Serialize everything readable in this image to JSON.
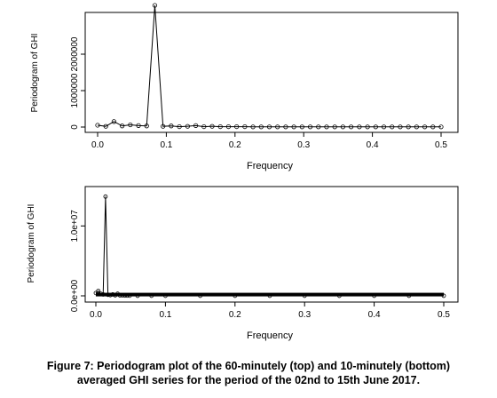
{
  "caption": {
    "line1": "Figure 7: Periodogram plot of the 60-minutely (top) and 10-minutely (bottom)",
    "line2": "averaged GHI series for the period of the 02nd to 15th June 2017."
  },
  "chart_data": [
    {
      "type": "line",
      "xlabel": "Frequency",
      "ylabel": "Periodogram of GHI",
      "xlim": [
        0,
        0.5
      ],
      "ylim": [
        0,
        3000000
      ],
      "xticks": [
        "0.0",
        "0.1",
        "0.2",
        "0.3",
        "0.4",
        "0.5"
      ],
      "yticks": [
        "0",
        "1000000",
        "2000000"
      ],
      "grid": false,
      "series": [
        {
          "x": [
            0.0,
            0.0119,
            0.0238,
            0.0357,
            0.0476,
            0.0595,
            0.0714,
            0.0833,
            0.0952,
            0.1071,
            0.119,
            0.131,
            0.1429,
            0.1548,
            0.1667,
            0.1786,
            0.1905,
            0.2024,
            0.2143,
            0.2262,
            0.2381,
            0.25,
            0.2619,
            0.2738,
            0.2857,
            0.2976,
            0.3095,
            0.3214,
            0.3333,
            0.3452,
            0.3571,
            0.369,
            0.381,
            0.3929,
            0.4048,
            0.4167,
            0.4286,
            0.4405,
            0.4524,
            0.4643,
            0.4762,
            0.4881,
            0.5
          ],
          "y": [
            50000,
            20000,
            150000,
            30000,
            60000,
            40000,
            30000,
            3340000,
            20000,
            30000,
            10000,
            20000,
            40000,
            10000,
            20000,
            10000,
            10000,
            10000,
            10000,
            5000,
            5000,
            5000,
            5000,
            5000,
            5000,
            5000,
            5000,
            5000,
            5000,
            5000,
            5000,
            5000,
            5000,
            5000,
            5000,
            5000,
            5000,
            5000,
            5000,
            5000,
            5000,
            5000,
            5000
          ]
        }
      ]
    },
    {
      "type": "line",
      "xlabel": "Frequency",
      "ylabel": "Periodogram of GHI",
      "xlim": [
        0,
        0.5
      ],
      "ylim": [
        0,
        15000000
      ],
      "xticks": [
        "0.0",
        "0.1",
        "0.2",
        "0.3",
        "0.4",
        "0.5"
      ],
      "yticks": [
        "0.0e+00",
        "1.0e+07"
      ],
      "grid": false,
      "series": [
        {
          "x": [
            0.0,
            0.0035,
            0.007,
            0.0105,
            0.0139,
            0.0174,
            0.0208,
            0.0243,
            0.0278,
            0.0313,
            0.0347,
            0.0382,
            0.0417,
            0.0451,
            0.0486,
            0.06,
            0.08,
            0.1,
            0.15,
            0.2,
            0.25,
            0.3,
            0.35,
            0.4,
            0.45,
            0.5
          ],
          "y": [
            400000,
            700000,
            300000,
            200000,
            14200000,
            150000,
            100000,
            200000,
            80000,
            300000,
            60000,
            50000,
            40000,
            30000,
            20000,
            10000,
            10000,
            10000,
            10000,
            10000,
            10000,
            10000,
            10000,
            10000,
            10000,
            10000
          ]
        }
      ]
    }
  ]
}
